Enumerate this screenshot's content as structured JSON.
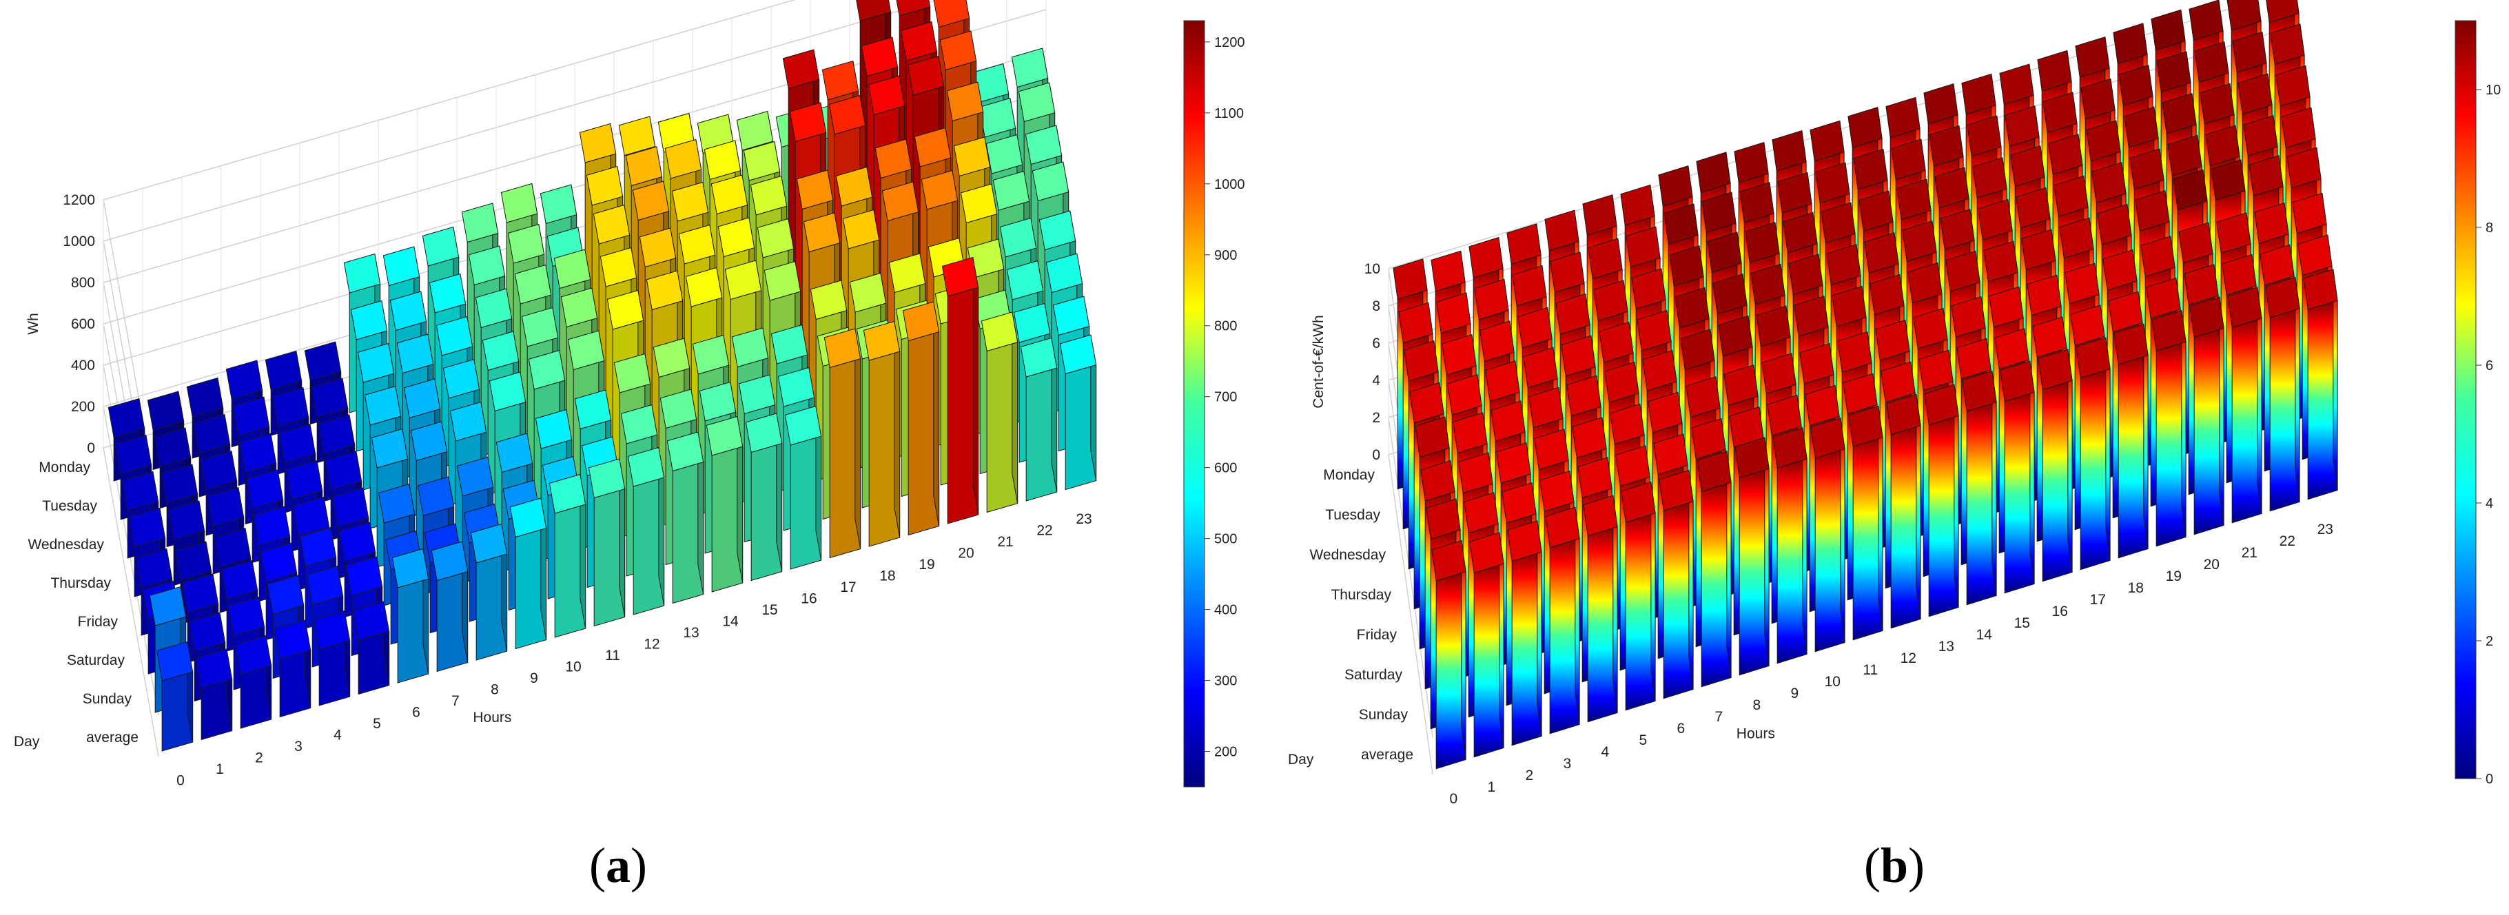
{
  "panel_labels": {
    "a": "a",
    "b": "b"
  },
  "chart_data": [
    {
      "type": "bar3d",
      "panel": "a",
      "zlabel": "Wh",
      "xlabel": "Hours",
      "ylabel": "Day",
      "x_ticks": [
        "0",
        "1",
        "2",
        "3",
        "4",
        "5",
        "6",
        "7",
        "8",
        "9",
        "10",
        "11",
        "12",
        "13",
        "14",
        "15",
        "16",
        "17",
        "18",
        "19",
        "20",
        "21",
        "22",
        "23"
      ],
      "y_ticks": [
        "Monday",
        "Tuesday",
        "Wednesday",
        "Thursday",
        "Friday",
        "Saturday",
        "Sunday",
        "average"
      ],
      "z_ticks": [
        "0",
        "200",
        "400",
        "600",
        "800",
        "1000",
        "1200"
      ],
      "zlim": [
        0,
        1200
      ],
      "colorbar": {
        "ticks": [
          "200",
          "300",
          "400",
          "500",
          "600",
          "700",
          "800",
          "900",
          "1000",
          "1100",
          "1200"
        ],
        "range": [
          150,
          1230
        ],
        "colormap": "jet"
      },
      "grid": true,
      "values": [
        [
          210,
          190,
          200,
          230,
          220,
          210,
          580,
          560,
          600,
          660,
          700,
          640,
          880,
          860,
          820,
          760,
          720,
          680,
          660,
          1180,
          1150,
          1040,
          620,
          640
        ],
        [
          220,
          200,
          210,
          240,
          230,
          220,
          540,
          530,
          560,
          640,
          690,
          620,
          860,
          900,
          880,
          820,
          760,
          1150,
          1040,
          1100,
          1120,
          1020,
          640,
          660
        ],
        [
          230,
          210,
          220,
          250,
          240,
          230,
          520,
          510,
          540,
          620,
          680,
          700,
          860,
          920,
          860,
          840,
          780,
          1080,
          1060,
          1100,
          1140,
          960,
          650,
          640
        ],
        [
          240,
          220,
          230,
          260,
          250,
          240,
          500,
          480,
          520,
          600,
          660,
          700,
          840,
          880,
          840,
          820,
          760,
          940,
          900,
          980,
          980,
          880,
          660,
          650
        ],
        [
          230,
          210,
          220,
          270,
          260,
          250,
          480,
          460,
          500,
          590,
          640,
          680,
          820,
          860,
          820,
          800,
          740,
          920,
          880,
          960,
          960,
          840,
          620,
          600
        ],
        [
          260,
          240,
          250,
          280,
          300,
          270,
          400,
          380,
          420,
          480,
          540,
          580,
          700,
          720,
          680,
          660,
          620,
          780,
          760,
          800,
          820,
          760,
          600,
          580
        ],
        [
          420,
          240,
          260,
          310,
          300,
          290,
          360,
          340,
          380,
          440,
          500,
          540,
          640,
          660,
          640,
          620,
          600,
          740,
          720,
          760,
          780,
          700,
          580,
          560
        ],
        [
          340,
          250,
          260,
          280,
          270,
          260,
          460,
          440,
          470,
          540,
          600,
          620,
          620,
          640,
          660,
          620,
          600,
          920,
          900,
          940,
          1100,
          780,
          600,
          560
        ]
      ]
    },
    {
      "type": "bar3d",
      "panel": "b",
      "zlabel": "Cent-of-€/kWh",
      "xlabel": "Hours",
      "ylabel": "Day",
      "x_ticks": [
        "0",
        "1",
        "2",
        "3",
        "4",
        "5",
        "6",
        "7",
        "8",
        "9",
        "10",
        "11",
        "12",
        "13",
        "14",
        "15",
        "16",
        "17",
        "18",
        "19",
        "20",
        "21",
        "22",
        "23"
      ],
      "y_ticks": [
        "Monday",
        "Tuesday",
        "Wednesday",
        "Thursday",
        "Friday",
        "Saturday",
        "Sunday",
        "average"
      ],
      "z_ticks": [
        "0",
        "2",
        "4",
        "6",
        "8",
        "10"
      ],
      "zlim": [
        0,
        10.5
      ],
      "colorbar": {
        "ticks": [
          "0",
          "2",
          "4",
          "6",
          "8",
          "10"
        ],
        "range": [
          0,
          11
        ],
        "colormap": "jet"
      },
      "grid": true,
      "values": [
        [
          10.2,
          10.0,
          10.1,
          10.2,
          10.3,
          10.5,
          10.4,
          10.8,
          10.9,
          10.8,
          10.8,
          10.7,
          10.8,
          10.7,
          10.8,
          10.7,
          10.6,
          10.7,
          10.8,
          10.9,
          11.0,
          10.9,
          10.8,
          10.6
        ],
        [
          10.0,
          9.9,
          10.0,
          10.1,
          10.2,
          10.3,
          10.3,
          10.9,
          10.9,
          10.8,
          10.7,
          10.6,
          10.7,
          10.6,
          10.7,
          10.6,
          10.5,
          10.6,
          10.7,
          10.8,
          10.9,
          10.8,
          10.7,
          10.5
        ],
        [
          10.1,
          9.8,
          9.9,
          10.0,
          10.1,
          10.2,
          10.2,
          10.8,
          10.9,
          10.8,
          10.7,
          10.6,
          10.6,
          10.6,
          10.6,
          10.5,
          10.5,
          10.5,
          10.6,
          10.7,
          10.8,
          10.7,
          10.6,
          10.4
        ],
        [
          10.0,
          9.8,
          9.9,
          10.0,
          10.0,
          10.1,
          10.1,
          10.7,
          10.8,
          10.7,
          10.6,
          10.5,
          10.5,
          10.5,
          10.5,
          10.4,
          10.4,
          10.4,
          10.5,
          10.6,
          10.7,
          10.6,
          10.5,
          10.3
        ],
        [
          10.3,
          9.9,
          9.9,
          10.0,
          10.0,
          10.1,
          10.1,
          10.6,
          10.7,
          10.6,
          10.5,
          10.4,
          10.4,
          10.4,
          10.4,
          10.3,
          10.3,
          10.3,
          10.4,
          10.5,
          11.0,
          10.9,
          10.5,
          10.3
        ],
        [
          10.1,
          9.9,
          9.8,
          9.9,
          9.9,
          10.0,
          10.0,
          10.2,
          10.2,
          10.2,
          10.1,
          10.1,
          10.1,
          10.1,
          10.1,
          10.0,
          10.0,
          10.0,
          10.1,
          10.2,
          10.3,
          10.2,
          10.1,
          10.0
        ],
        [
          10.2,
          9.9,
          9.8,
          9.8,
          9.9,
          9.9,
          9.9,
          10.1,
          10.1,
          10.1,
          10.0,
          10.0,
          10.0,
          10.0,
          10.0,
          9.9,
          9.9,
          9.9,
          10.0,
          10.1,
          10.2,
          10.1,
          10.0,
          9.9
        ],
        [
          10.1,
          9.9,
          9.9,
          10.0,
          10.0,
          10.1,
          10.1,
          10.5,
          10.6,
          10.5,
          10.4,
          10.4,
          10.4,
          10.3,
          10.4,
          10.3,
          10.3,
          10.3,
          10.4,
          10.5,
          10.6,
          10.5,
          10.4,
          10.2
        ]
      ]
    }
  ]
}
